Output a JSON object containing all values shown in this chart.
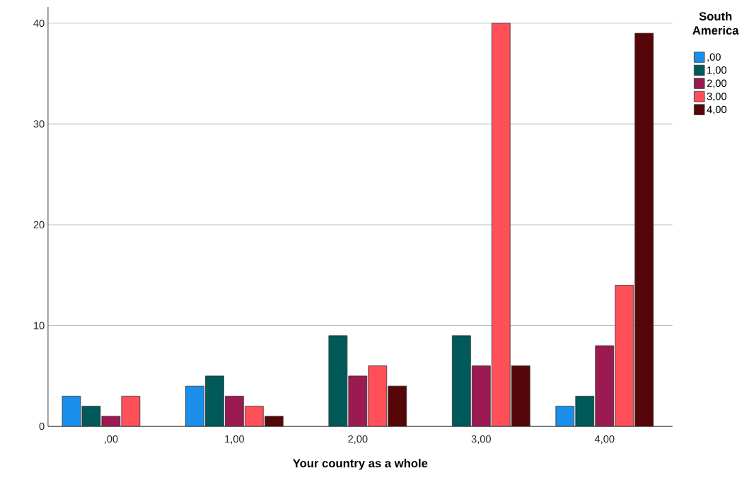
{
  "chart_data": {
    "type": "bar",
    "xlabel": "Your country as a whole",
    "legend_title": "South America",
    "categories": [
      ",00",
      "1,00",
      "2,00",
      "3,00",
      "4,00"
    ],
    "series": [
      {
        "name": ",00",
        "color": "#1a8ee8",
        "values": [
          3,
          4,
          null,
          null,
          2
        ]
      },
      {
        "name": "1,00",
        "color": "#005a5a",
        "values": [
          2,
          5,
          9,
          9,
          3
        ]
      },
      {
        "name": "2,00",
        "color": "#9c1a52",
        "values": [
          1,
          3,
          5,
          6,
          8
        ]
      },
      {
        "name": "3,00",
        "color": "#ff4f58",
        "values": [
          3,
          2,
          6,
          40,
          14
        ]
      },
      {
        "name": "4,00",
        "color": "#560508",
        "values": [
          null,
          1,
          4,
          6,
          39
        ]
      }
    ],
    "ylim": [
      0,
      41.6
    ],
    "yticks": [
      0,
      10,
      20,
      30,
      40
    ],
    "grid": "y",
    "legend": "top right"
  }
}
